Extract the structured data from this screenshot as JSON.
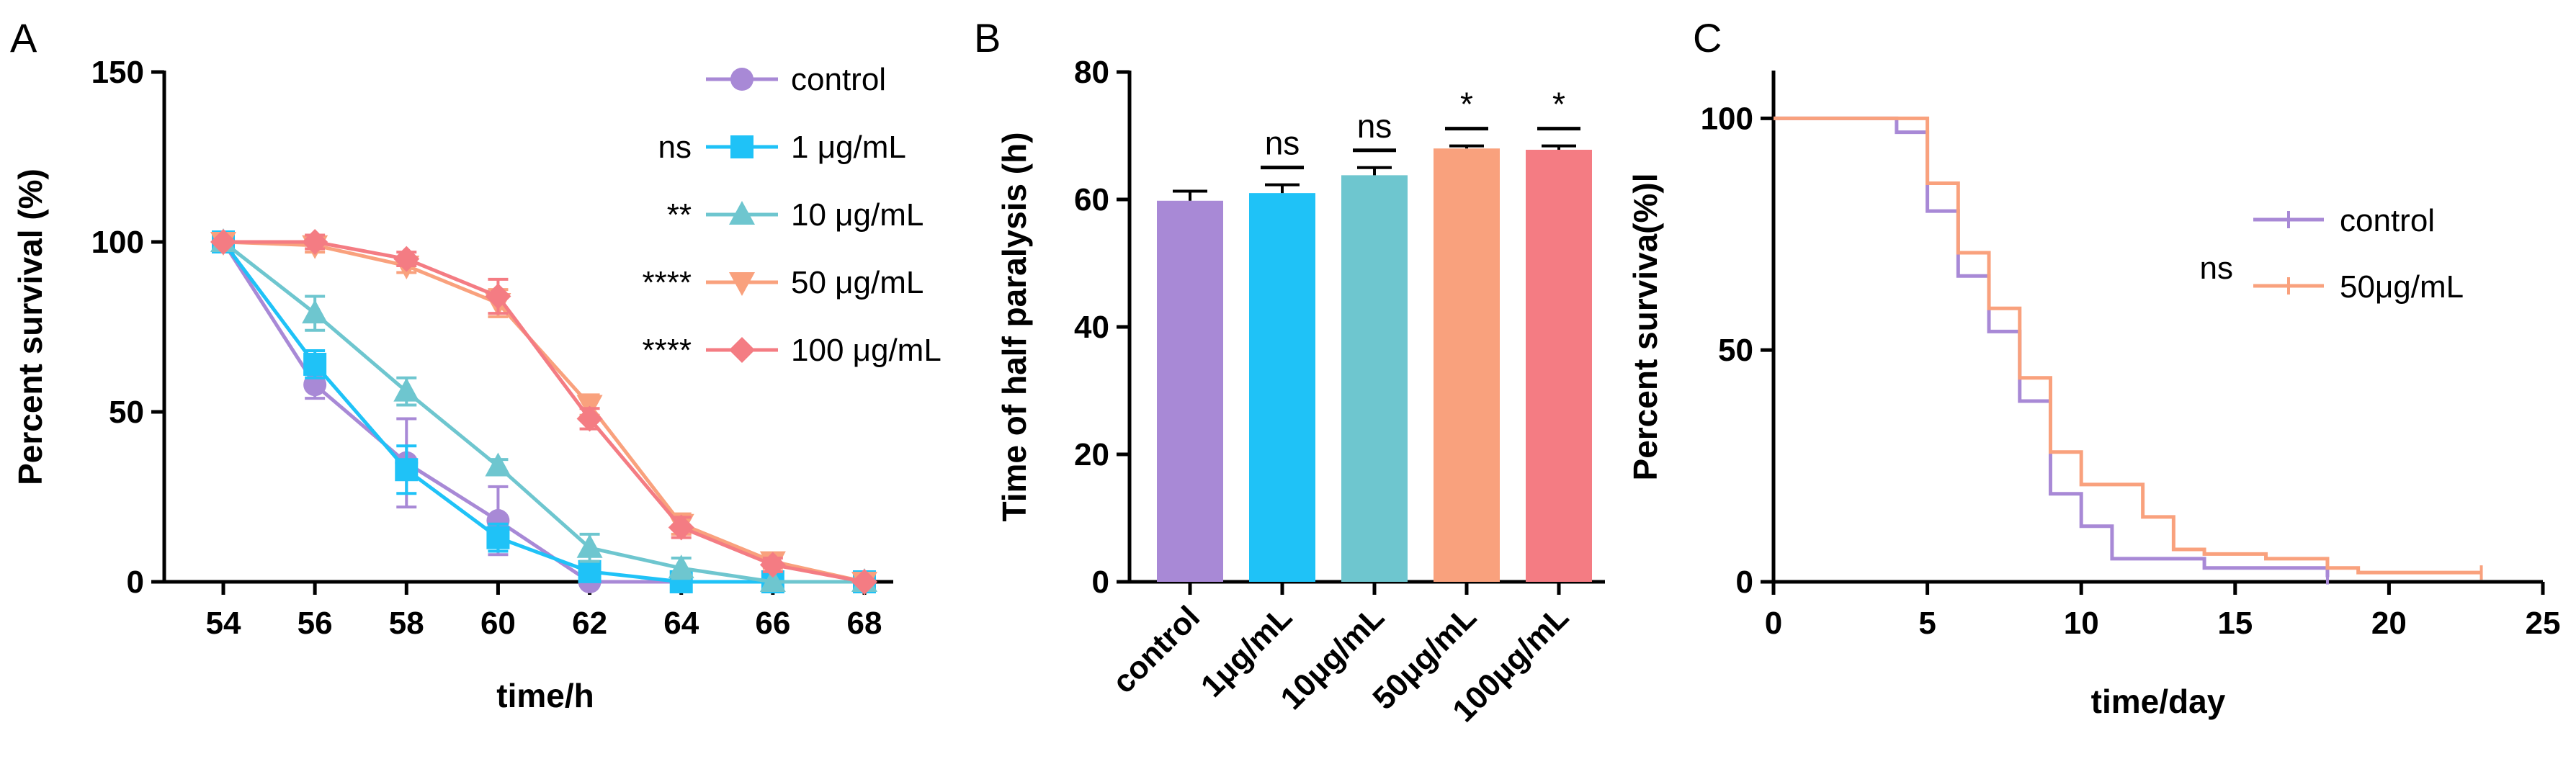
{
  "chart_data": [
    {
      "panel": "A",
      "type": "line",
      "xlabel": "time/h",
      "ylabel": "Percent survival (%)",
      "x": [
        54,
        56,
        58,
        60,
        62,
        64,
        66,
        68
      ],
      "x_ticks": [
        "54",
        "56",
        "58",
        "60",
        "62",
        "64",
        "66",
        "68"
      ],
      "ylim": [
        0,
        150
      ],
      "y_ticks": [
        "0",
        "50",
        "100",
        "150"
      ],
      "series": [
        {
          "name": "control",
          "color": "#a889d6",
          "marker": "circle",
          "sig": "",
          "values": [
            100,
            58,
            35,
            18,
            0,
            0,
            0,
            0
          ],
          "errors": [
            0,
            4,
            13,
            10,
            0,
            0,
            0,
            0
          ]
        },
        {
          "name": "1 μg/mL",
          "color": "#1fc2f7",
          "marker": "square",
          "sig": "ns",
          "values": [
            100,
            64,
            33,
            13,
            3,
            0,
            0,
            0
          ],
          "errors": [
            0,
            4,
            7,
            4,
            2,
            0,
            0,
            0
          ]
        },
        {
          "name": "10 μg/mL",
          "color": "#6ec6cf",
          "marker": "triangle-up",
          "sig": "**",
          "values": [
            100,
            79,
            56,
            34,
            10,
            4,
            0,
            0
          ],
          "errors": [
            0,
            5,
            4,
            2,
            4,
            3,
            0,
            0
          ]
        },
        {
          "name": "50 μg/mL",
          "color": "#f9a17d",
          "marker": "triangle-down",
          "sig": "****",
          "values": [
            100,
            99,
            93,
            82,
            52,
            17,
            6,
            0
          ],
          "errors": [
            0,
            2,
            2,
            4,
            3,
            3,
            2,
            0
          ]
        },
        {
          "name": "100 μg/mL",
          "color": "#f47c83",
          "marker": "diamond",
          "sig": "****",
          "values": [
            100,
            100,
            95,
            84,
            48,
            16,
            5,
            0
          ],
          "errors": [
            0,
            2,
            2,
            5,
            3,
            3,
            2,
            0
          ]
        }
      ]
    },
    {
      "panel": "B",
      "type": "bar",
      "xlabel": "",
      "ylabel": "Time of half paralysis (h)",
      "ylim": [
        0,
        80
      ],
      "y_ticks": [
        "0",
        "20",
        "40",
        "60",
        "80"
      ],
      "categories": [
        "control",
        "1μg/mL",
        "10μg/mL",
        "50μg/mL",
        "100μg/mL"
      ],
      "values": [
        59.8,
        61,
        63.8,
        68,
        67.8
      ],
      "errors": [
        1.5,
        1.3,
        1.2,
        0.4,
        0.6
      ],
      "colors": [
        "#a889d6",
        "#1fc2f7",
        "#6ec6cf",
        "#f9a17d",
        "#f47c83"
      ],
      "sig": [
        "",
        "ns",
        "ns",
        "*",
        "*"
      ]
    },
    {
      "panel": "C",
      "type": "line",
      "style": "step",
      "xlabel": "time/day",
      "ylabel": "Percent surviva(%)l",
      "xlim": [
        0,
        25
      ],
      "x_ticks": [
        "0",
        "5",
        "10",
        "15",
        "20",
        "25"
      ],
      "ylim": [
        0,
        110
      ],
      "y_ticks": [
        "0",
        "50",
        "100"
      ],
      "series_sig": "ns",
      "series": [
        {
          "name": "control",
          "color": "#a889d6",
          "x": [
            0,
            4,
            5,
            6,
            7,
            8,
            9,
            10,
            11,
            13,
            14,
            15,
            17,
            18
          ],
          "values": [
            100,
            97,
            80,
            66,
            54,
            39,
            19,
            12,
            5,
            5,
            3,
            3,
            3,
            1
          ]
        },
        {
          "name": "50μg/mL",
          "color": "#f9a17d",
          "x": [
            0,
            5,
            6,
            7,
            8,
            9,
            10,
            12,
            13,
            14,
            16,
            18,
            19,
            23
          ],
          "values": [
            100,
            86,
            71,
            59,
            44,
            28,
            21,
            14,
            7,
            6,
            5,
            3,
            2,
            2
          ]
        }
      ]
    }
  ]
}
